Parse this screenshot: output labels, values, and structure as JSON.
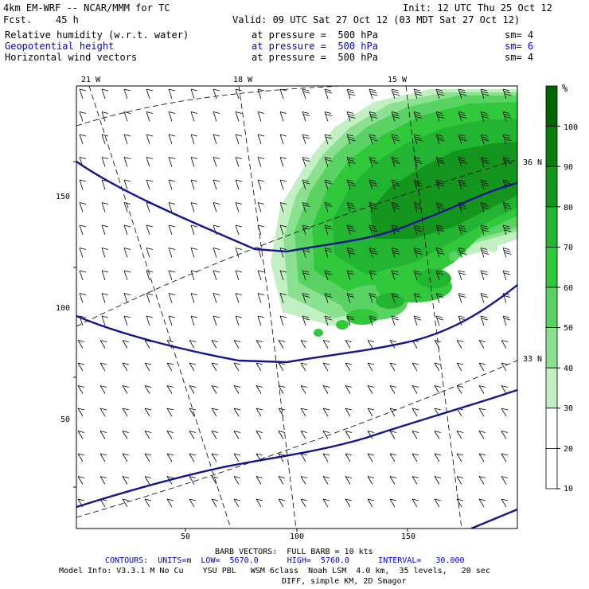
{
  "header": {
    "model_title": "4km EM-WRF -- NCAR/MMM for TC",
    "init": "Init: 12 UTC Thu 25 Oct 12",
    "fcst_label": "Fcst.",
    "fcst_value": "45 h",
    "valid": "Valid: 09 UTC Sat 27 Oct 12 (03 MDT Sat 27 Oct 12)",
    "fields": [
      {
        "name": "Relative humidity (w.r.t. water)",
        "level": "at pressure =  500 hPa",
        "sm": "sm= 4",
        "color": "#000000"
      },
      {
        "name": "Geopotential height",
        "level": "at pressure =  500 hPa",
        "sm": "sm= 6",
        "color": "#0000c8"
      },
      {
        "name": "Horizontal wind vectors",
        "level": "at pressure =  500 hPa",
        "sm": "sm= 4",
        "color": "#000000"
      }
    ]
  },
  "map": {
    "top_longitudes": [
      "21 W",
      "18 W",
      "15 W"
    ],
    "right_latitudes": [
      "36 N",
      "33 N"
    ],
    "y_ticks": [
      "150",
      "100",
      "50"
    ],
    "x_ticks": [
      "50",
      "100",
      "150"
    ]
  },
  "colorbar": {
    "unit": "%",
    "labels": [
      "100",
      "90",
      "80",
      "70",
      "60",
      "50",
      "40",
      "30",
      "20",
      "10"
    ],
    "colors": [
      "#006400",
      "#0a7d0a",
      "#14961e",
      "#23b432",
      "#32c83c",
      "#5ad264",
      "#8ce191",
      "#c3f0c3",
      "#ffffff",
      "#ffffff"
    ]
  },
  "footer": {
    "barb": "BARB VECTORS:  FULL BARB = 10 kts",
    "contours": "CONTOURS:  UNITS=m  LOW=  5670.0      HIGH=  5760.0      INTERVAL=   30.000",
    "model_info": "Model Info: V3.3.1 M No Cu    YSU PBL   WSM 6class  Noah LSM  4.0 km,  35 levels,   20 sec",
    "diff": "DIFF, simple KM, 2D Smagor"
  }
}
